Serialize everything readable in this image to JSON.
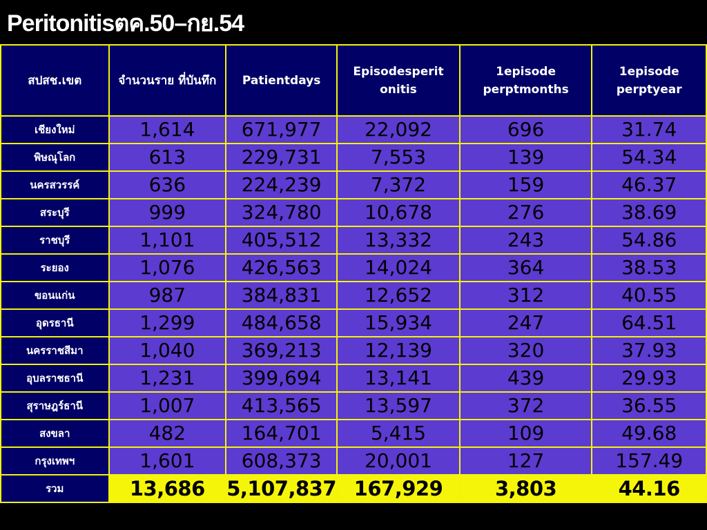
{
  "title": "Peritonitisตค.50–กย.54",
  "headers": [
    "สปสช.เขต",
    "จำนวนราย ที่บันทึก",
    "Patientdays",
    "Episodesperit onitis",
    "1episode perptmonths",
    "1episode perptyear"
  ],
  "rows": [
    {
      "region": "เชียงใหม่",
      "cases": "1,614",
      "patientdays": "671,977",
      "episodes": "22,092",
      "pt_months": "696",
      "pt_year": "31.74"
    },
    {
      "region": "พิษณุโลก",
      "cases": "613",
      "patientdays": "229,731",
      "episodes": "7,553",
      "pt_months": "139",
      "pt_year": "54.34"
    },
    {
      "region": "นครสวรรค์",
      "cases": "636",
      "patientdays": "224,239",
      "episodes": "7,372",
      "pt_months": "159",
      "pt_year": "46.37"
    },
    {
      "region": "สระบุรี",
      "cases": "999",
      "patientdays": "324,780",
      "episodes": "10,678",
      "pt_months": "276",
      "pt_year": "38.69"
    },
    {
      "region": "ราชบุรี",
      "cases": "1,101",
      "patientdays": "405,512",
      "episodes": "13,332",
      "pt_months": "243",
      "pt_year": "54.86"
    },
    {
      "region": "ระยอง",
      "cases": "1,076",
      "patientdays": "426,563",
      "episodes": "14,024",
      "pt_months": "364",
      "pt_year": "38.53"
    },
    {
      "region": "ขอนแก่น",
      "cases": "987",
      "patientdays": "384,831",
      "episodes": "12,652",
      "pt_months": "312",
      "pt_year": "40.55"
    },
    {
      "region": "อุดรธานี",
      "cases": "1,299",
      "patientdays": "484,658",
      "episodes": "15,934",
      "pt_months": "247",
      "pt_year": "64.51"
    },
    {
      "region": "นครราชสีมา",
      "cases": "1,040",
      "patientdays": "369,213",
      "episodes": "12,139",
      "pt_months": "320",
      "pt_year": "37.93"
    },
    {
      "region": "อุบลราชธานี",
      "cases": "1,231",
      "patientdays": "399,694",
      "episodes": "13,141",
      "pt_months": "439",
      "pt_year": "29.93"
    },
    {
      "region": "สุราษฎร์ธานี",
      "cases": "1,007",
      "patientdays": "413,565",
      "episodes": "13,597",
      "pt_months": "372",
      "pt_year": "36.55"
    },
    {
      "region": "สงขลา",
      "cases": "482",
      "patientdays": "164,701",
      "episodes": "5,415",
      "pt_months": "109",
      "pt_year": "49.68"
    },
    {
      "region": "กรุงเทพฯ",
      "cases": "1,601",
      "patientdays": "608,373",
      "episodes": "20,001",
      "pt_months": "127",
      "pt_year": "157.49"
    }
  ],
  "total": {
    "region": "รวม",
    "cases": "13,686",
    "patientdays": "5,107,837",
    "episodes": "167,929",
    "pt_months": "3,803",
    "pt_year": "44.16"
  },
  "colors": {
    "background": "#000000",
    "header_bg": "#000066",
    "cell_bg": "#5c3bd0",
    "border": "#f4f40a",
    "total_bg": "#f5f50a"
  }
}
